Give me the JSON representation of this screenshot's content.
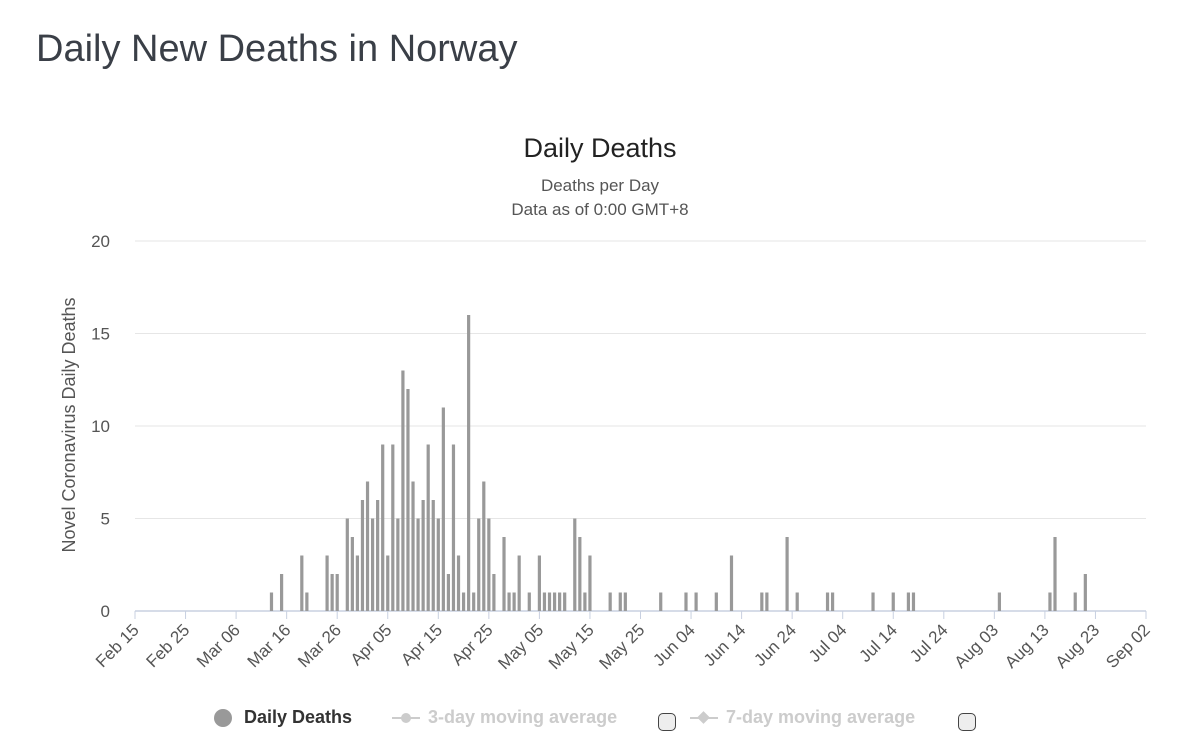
{
  "page": {
    "title": "Daily New Deaths in Norway"
  },
  "chart_data": {
    "type": "bar",
    "title": "Daily Deaths",
    "subtitle": "Deaths per Day",
    "subtitle2": "Data as of 0:00 GMT+8",
    "xlabel": "",
    "ylabel": "Novel Coronavirus Daily Deaths",
    "ylim": [
      0,
      20
    ],
    "yticks": [
      0,
      5,
      10,
      15,
      20
    ],
    "xlim": [
      "2020-02-15",
      "2020-09-02"
    ],
    "xticks": [
      "Feb 15",
      "Feb 25",
      "Mar 06",
      "Mar 16",
      "Mar 26",
      "Apr 05",
      "Apr 15",
      "Apr 25",
      "May 05",
      "May 15",
      "May 25",
      "Jun 04",
      "Jun 14",
      "Jun 24",
      "Jul 04",
      "Jul 14",
      "Jul 24",
      "Aug 03",
      "Aug 13",
      "Aug 23",
      "Sep 02"
    ],
    "grid": true,
    "bar_color": "#999999",
    "series": [
      {
        "name": "Daily Deaths",
        "points": [
          [
            "2020-03-13",
            1
          ],
          [
            "2020-03-15",
            2
          ],
          [
            "2020-03-19",
            3
          ],
          [
            "2020-03-20",
            1
          ],
          [
            "2020-03-24",
            3
          ],
          [
            "2020-03-25",
            2
          ],
          [
            "2020-03-26",
            2
          ],
          [
            "2020-03-28",
            5
          ],
          [
            "2020-03-29",
            4
          ],
          [
            "2020-03-30",
            3
          ],
          [
            "2020-03-31",
            6
          ],
          [
            "2020-04-01",
            7
          ],
          [
            "2020-04-02",
            5
          ],
          [
            "2020-04-03",
            6
          ],
          [
            "2020-04-04",
            9
          ],
          [
            "2020-04-05",
            3
          ],
          [
            "2020-04-06",
            9
          ],
          [
            "2020-04-07",
            5
          ],
          [
            "2020-04-08",
            13
          ],
          [
            "2020-04-09",
            12
          ],
          [
            "2020-04-10",
            7
          ],
          [
            "2020-04-11",
            5
          ],
          [
            "2020-04-12",
            6
          ],
          [
            "2020-04-13",
            9
          ],
          [
            "2020-04-14",
            6
          ],
          [
            "2020-04-15",
            5
          ],
          [
            "2020-04-16",
            11
          ],
          [
            "2020-04-17",
            2
          ],
          [
            "2020-04-18",
            9
          ],
          [
            "2020-04-19",
            3
          ],
          [
            "2020-04-20",
            1
          ],
          [
            "2020-04-21",
            16
          ],
          [
            "2020-04-22",
            1
          ],
          [
            "2020-04-23",
            5
          ],
          [
            "2020-04-24",
            7
          ],
          [
            "2020-04-25",
            5
          ],
          [
            "2020-04-26",
            2
          ],
          [
            "2020-04-28",
            4
          ],
          [
            "2020-04-29",
            1
          ],
          [
            "2020-04-30",
            1
          ],
          [
            "2020-05-01",
            3
          ],
          [
            "2020-05-03",
            1
          ],
          [
            "2020-05-05",
            3
          ],
          [
            "2020-05-06",
            1
          ],
          [
            "2020-05-07",
            1
          ],
          [
            "2020-05-08",
            1
          ],
          [
            "2020-05-09",
            1
          ],
          [
            "2020-05-10",
            1
          ],
          [
            "2020-05-12",
            5
          ],
          [
            "2020-05-13",
            4
          ],
          [
            "2020-05-14",
            1
          ],
          [
            "2020-05-15",
            3
          ],
          [
            "2020-05-19",
            1
          ],
          [
            "2020-05-21",
            1
          ],
          [
            "2020-05-22",
            1
          ],
          [
            "2020-05-29",
            1
          ],
          [
            "2020-06-03",
            1
          ],
          [
            "2020-06-05",
            1
          ],
          [
            "2020-06-09",
            1
          ],
          [
            "2020-06-12",
            3
          ],
          [
            "2020-06-18",
            1
          ],
          [
            "2020-06-19",
            1
          ],
          [
            "2020-06-23",
            4
          ],
          [
            "2020-06-25",
            1
          ],
          [
            "2020-07-01",
            1
          ],
          [
            "2020-07-02",
            1
          ],
          [
            "2020-07-10",
            1
          ],
          [
            "2020-07-14",
            1
          ],
          [
            "2020-07-17",
            1
          ],
          [
            "2020-07-18",
            1
          ],
          [
            "2020-08-04",
            1
          ],
          [
            "2020-08-14",
            1
          ],
          [
            "2020-08-15",
            4
          ],
          [
            "2020-08-19",
            1
          ],
          [
            "2020-08-21",
            2
          ]
        ]
      }
    ]
  },
  "legend": {
    "items": [
      {
        "label": "Daily Deaths",
        "color": "#999999",
        "active": true
      },
      {
        "label": "3-day moving average",
        "color": "#cccccc",
        "active": false
      },
      {
        "label": "7-day moving average",
        "color": "#cccccc",
        "active": false
      }
    ]
  }
}
